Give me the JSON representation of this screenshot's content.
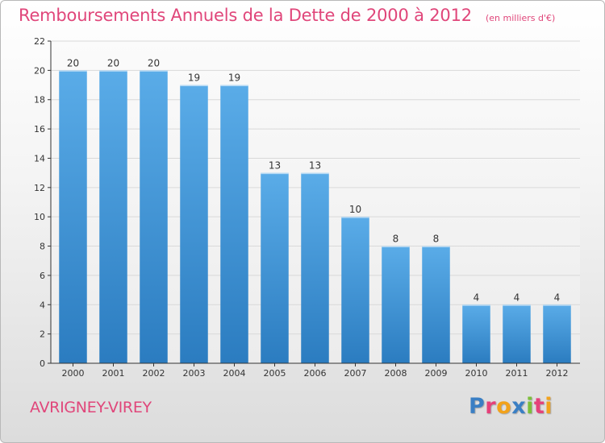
{
  "header": {
    "title": "Remboursements Annuels de la Dette de 2000 à 2012",
    "subtitle": "(en milliers d'€)"
  },
  "footer": {
    "commune": "AVRIGNEY-VIREY",
    "brand": "Proxiti",
    "brand_letters": [
      {
        "char": "P",
        "color": "#3a7fc4"
      },
      {
        "char": "r",
        "color": "#e5417a"
      },
      {
        "char": "o",
        "color": "#f2a21b"
      },
      {
        "char": "x",
        "color": "#3a7fc4"
      },
      {
        "char": "i",
        "color": "#7cbf3a"
      },
      {
        "char": "t",
        "color": "#e5417a"
      },
      {
        "char": "i",
        "color": "#f2a21b"
      }
    ]
  },
  "colors": {
    "title": "#e0467a",
    "bar_light": "#5aace8",
    "bar_dark": "#2b7cc0",
    "axis": "#333333",
    "grid": "#d9d9d9"
  },
  "chart_data": {
    "type": "bar",
    "categories": [
      "2000",
      "2001",
      "2002",
      "2003",
      "2004",
      "2005",
      "2006",
      "2007",
      "2008",
      "2009",
      "2010",
      "2011",
      "2012"
    ],
    "values": [
      20,
      20,
      20,
      19,
      19,
      13,
      13,
      10,
      8,
      8,
      4,
      4,
      4
    ],
    "data_labels": [
      "20",
      "20",
      "20",
      "19",
      "19",
      "13",
      "13",
      "10",
      "8",
      "8",
      "4",
      "4",
      "4"
    ],
    "title": "Remboursements Annuels de la Dette de 2000 à 2012",
    "subtitle": "(en milliers d'€)",
    "xlabel": "",
    "ylabel": "",
    "ylim": [
      0,
      22
    ],
    "yticks": [
      0,
      2,
      4,
      6,
      8,
      10,
      12,
      14,
      16,
      18,
      20,
      22
    ],
    "grid": true,
    "legend": "none"
  }
}
